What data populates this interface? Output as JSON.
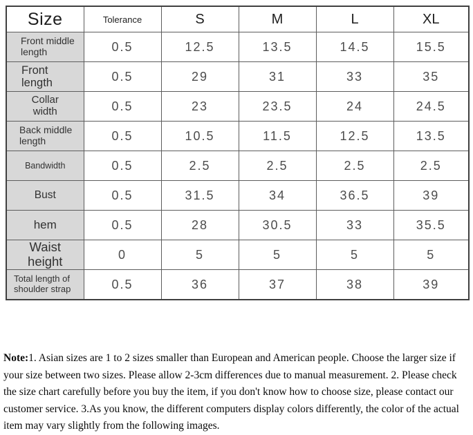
{
  "table": {
    "columns": [
      "Size",
      "Tolerance",
      "S",
      "M",
      "L",
      "XL"
    ],
    "rows": [
      {
        "label": "Front middle length",
        "values": [
          "0.5",
          "12.5",
          "13.5",
          "14.5",
          "15.5"
        ]
      },
      {
        "label": "Front length",
        "values": [
          "0.5",
          "29",
          "31",
          "33",
          "35"
        ]
      },
      {
        "label": "Collar width",
        "values": [
          "0.5",
          "23",
          "23.5",
          "24",
          "24.5"
        ]
      },
      {
        "label": "Back middle length",
        "values": [
          "0.5",
          "10.5",
          "11.5",
          "12.5",
          "13.5"
        ]
      },
      {
        "label": "Bandwidth",
        "values": [
          "0.5",
          "2.5",
          "2.5",
          "2.5",
          "2.5"
        ]
      },
      {
        "label": "Bust",
        "values": [
          "0.5",
          "31.5",
          "34",
          "36.5",
          "39"
        ]
      },
      {
        "label": "hem",
        "values": [
          "0.5",
          "28",
          "30.5",
          "33",
          "35.5"
        ]
      },
      {
        "label": "Waist height",
        "values": [
          "0",
          "5",
          "5",
          "5",
          "5"
        ]
      },
      {
        "label": "Total length of shoulder strap",
        "values": [
          "0.5",
          "36",
          "37",
          "38",
          "39"
        ]
      }
    ]
  },
  "note": {
    "prefix": "Note:",
    "text": "1. Asian sizes are 1 to 2 sizes smaller than European and American people. Choose the larger size if your size between two sizes. Please allow 2-3cm differences due to manual measurement. 2. Please check the size chart carefully before you buy the item, if you don't know how to choose size, please contact our customer service. 3.As you know, the different computers display colors differently, the color of the actual item may vary slightly from the following images."
  },
  "colors": {
    "row_header_bg": "#d8d8d8",
    "border_inner": "#5c5c5c",
    "border_outer": "#3f3f3f",
    "value_text": "#4c4c4c"
  }
}
